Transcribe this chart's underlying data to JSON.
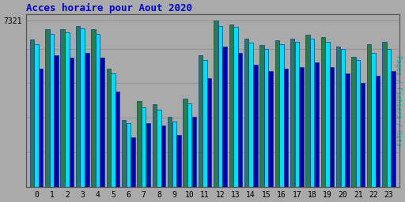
{
  "title": "Acces horaire pour Aout 2020",
  "title_color": "#0000cc",
  "ylabel_right": "Pages / Fichiers / Hits",
  "ylabel_right_color": "#00aaaa",
  "ytick_label": "7321",
  "background_color": "#aaaaaa",
  "plot_bg_color": "#aaaaaa",
  "bar_color_cyan": "#00ddff",
  "bar_color_teal": "#2a7a52",
  "bar_color_blue": "#0000aa",
  "bar_edge_color": "#004488",
  "hours": [
    0,
    1,
    2,
    3,
    4,
    5,
    6,
    7,
    8,
    9,
    10,
    11,
    12,
    13,
    14,
    15,
    16,
    17,
    18,
    19,
    20,
    21,
    22,
    23
  ],
  "values_cyan": [
    6300,
    6750,
    6800,
    7000,
    6750,
    5000,
    2800,
    3500,
    3400,
    2900,
    3700,
    5600,
    7100,
    7050,
    6350,
    6100,
    6300,
    6400,
    6550,
    6400,
    6100,
    5600,
    5900,
    6100
  ],
  "values_teal": [
    6500,
    6950,
    6950,
    7100,
    6950,
    5200,
    2950,
    3800,
    3650,
    3100,
    3900,
    5800,
    7321,
    7150,
    6550,
    6250,
    6450,
    6550,
    6700,
    6600,
    6200,
    5750,
    6300,
    6400
  ],
  "values_blue": [
    5200,
    5800,
    5700,
    5900,
    5700,
    4200,
    2200,
    2800,
    2700,
    2300,
    3100,
    4800,
    6200,
    5900,
    5400,
    5100,
    5200,
    5300,
    5500,
    5300,
    5000,
    4600,
    4900,
    5100
  ],
  "ylim": [
    0,
    7600
  ],
  "grid_yticks": [
    1524,
    3049,
    4573,
    6097,
    7321
  ],
  "figsize": [
    5.12,
    2.56
  ],
  "dpi": 100
}
